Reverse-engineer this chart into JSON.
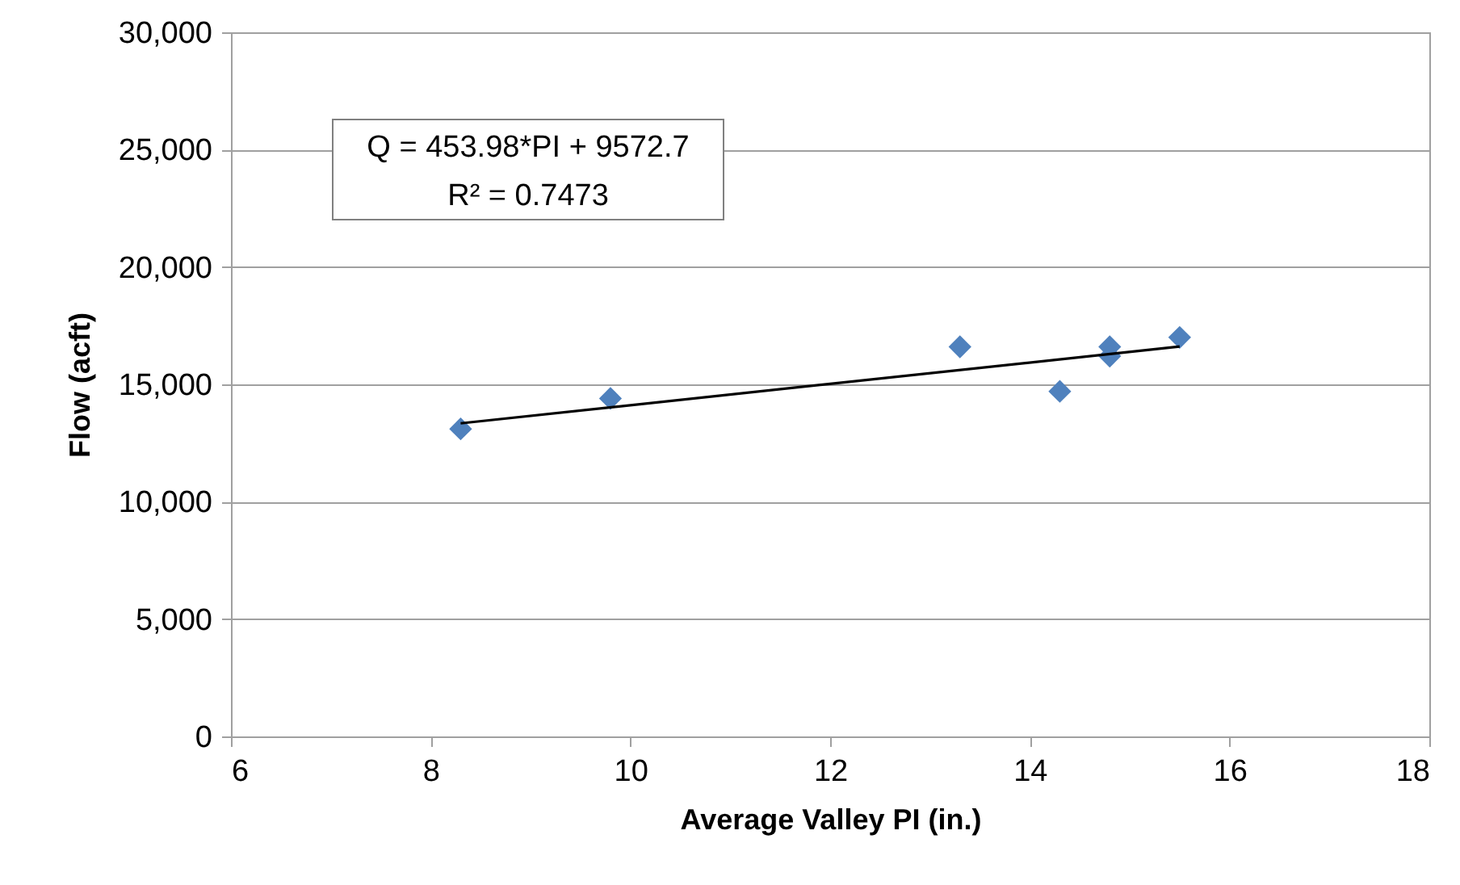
{
  "chart_data": {
    "type": "scatter",
    "xlabel": "Average Valley PI (in.)",
    "ylabel": "Flow (acft)",
    "xlim": [
      6,
      18
    ],
    "xticks": [
      6,
      8,
      10,
      12,
      14,
      16,
      18
    ],
    "ylim": [
      0,
      30000
    ],
    "yticks": [
      {
        "value": 0,
        "label": "0"
      },
      {
        "value": 5000,
        "label": "5,000"
      },
      {
        "value": 10000,
        "label": "10,000"
      },
      {
        "value": 15000,
        "label": "15,000"
      },
      {
        "value": 20000,
        "label": "20,000"
      },
      {
        "value": 25000,
        "label": "25,000"
      },
      {
        "value": 30000,
        "label": "30,000"
      }
    ],
    "grid": "y",
    "marker": "diamond",
    "series": [
      {
        "color": "#4f81bd",
        "x": [
          8.3,
          9.8,
          13.3,
          14.3,
          14.8,
          14.8,
          15.5
        ],
        "values": [
          13100,
          14400,
          16600,
          14700,
          16600,
          16200,
          17000
        ]
      },
      {
        "type": "line",
        "marker": "none",
        "color": "#000000",
        "x": [
          8.3,
          15.5
        ],
        "values": [
          13340,
          16610
        ]
      }
    ],
    "annotations": [
      "Q = 453.98*PI + 9572.7",
      "R² = 0.7473"
    ]
  }
}
